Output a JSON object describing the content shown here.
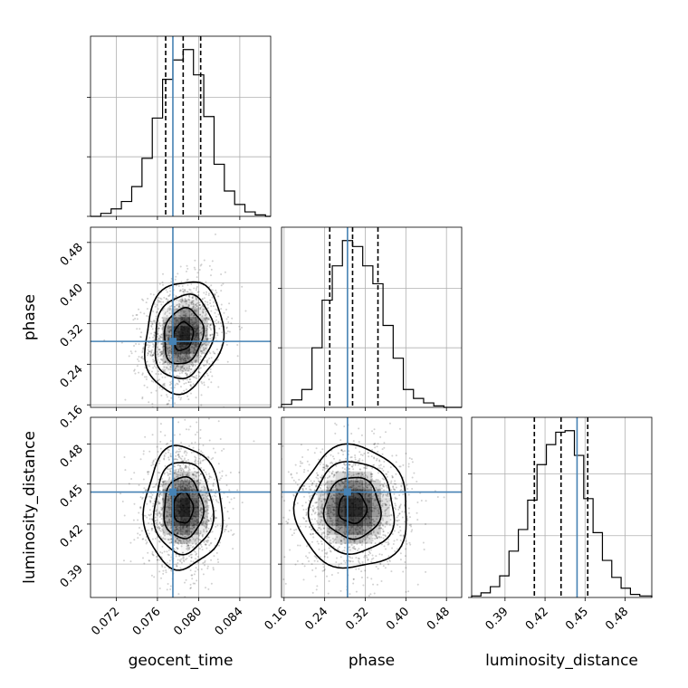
{
  "chart_data": {
    "type": "corner",
    "parameters": [
      "geocent_time",
      "phase",
      "luminosity_distance"
    ],
    "truths": [
      0.0775,
      0.285,
      0.444
    ],
    "truth_color": "#4682b4",
    "ranges": [
      [
        0.0695,
        0.087
      ],
      [
        0.155,
        0.51
      ],
      [
        0.365,
        0.5
      ]
    ],
    "ticks": [
      [
        "0.072",
        "0.076",
        "0.080",
        "0.084"
      ],
      [
        "0.16",
        "0.24",
        "0.32",
        "0.40",
        "0.48"
      ],
      [
        "0.39",
        "0.42",
        "0.45",
        "0.48"
      ]
    ],
    "quantiles": [
      [
        0.0768,
        0.0785,
        0.0802
      ],
      [
        0.25,
        0.295,
        0.345
      ],
      [
        0.412,
        0.432,
        0.452
      ]
    ],
    "histograms": [
      {
        "parameter": "geocent_time",
        "bin_edges": [
          0.0695,
          0.0705,
          0.0715,
          0.0725,
          0.0735,
          0.0745,
          0.0755,
          0.0765,
          0.0775,
          0.0785,
          0.0795,
          0.0805,
          0.0815,
          0.0825,
          0.0835,
          0.0845,
          0.0855,
          0.0865,
          0.087
        ],
        "counts": [
          0,
          2,
          5,
          10,
          20,
          39,
          66,
          92,
          105,
          112,
          95,
          67,
          35,
          17,
          8,
          3,
          1,
          0
        ]
      },
      {
        "parameter": "phase",
        "bin_edges": [
          0.155,
          0.175,
          0.195,
          0.215,
          0.235,
          0.255,
          0.275,
          0.295,
          0.315,
          0.335,
          0.355,
          0.375,
          0.395,
          0.415,
          0.435,
          0.455,
          0.475,
          0.495,
          0.51
        ],
        "counts": [
          2,
          5,
          12,
          40,
          72,
          95,
          112,
          108,
          95,
          83,
          55,
          33,
          12,
          6,
          3,
          1,
          0,
          0
        ]
      },
      {
        "parameter": "luminosity_distance",
        "bin_edges": [
          0.365,
          0.372,
          0.379,
          0.386,
          0.393,
          0.4,
          0.407,
          0.414,
          0.421,
          0.428,
          0.435,
          0.442,
          0.449,
          0.456,
          0.463,
          0.47,
          0.477,
          0.484,
          0.491,
          0.5
        ],
        "counts": [
          1,
          3,
          7,
          14,
          30,
          44,
          63,
          86,
          99,
          107,
          108,
          92,
          64,
          42,
          24,
          13,
          6,
          2,
          1
        ]
      }
    ],
    "pairs": [
      {
        "x": "geocent_time",
        "y": "phase",
        "center": [
          0.0785,
          0.295
        ],
        "sigma": [
          0.00165,
          0.048
        ],
        "rho": 0.15
      },
      {
        "x": "geocent_time",
        "y": "luminosity_distance",
        "center": [
          0.0785,
          0.432
        ],
        "sigma": [
          0.00165,
          0.02
        ],
        "rho": 0.0
      },
      {
        "x": "phase",
        "y": "luminosity_distance",
        "center": [
          0.295,
          0.432
        ],
        "sigma": [
          0.048,
          0.02
        ],
        "rho": 0.0
      }
    ],
    "contour_levels_sigma": [
      0.5,
      1.0,
      1.5,
      2.0
    ],
    "grid": true
  }
}
